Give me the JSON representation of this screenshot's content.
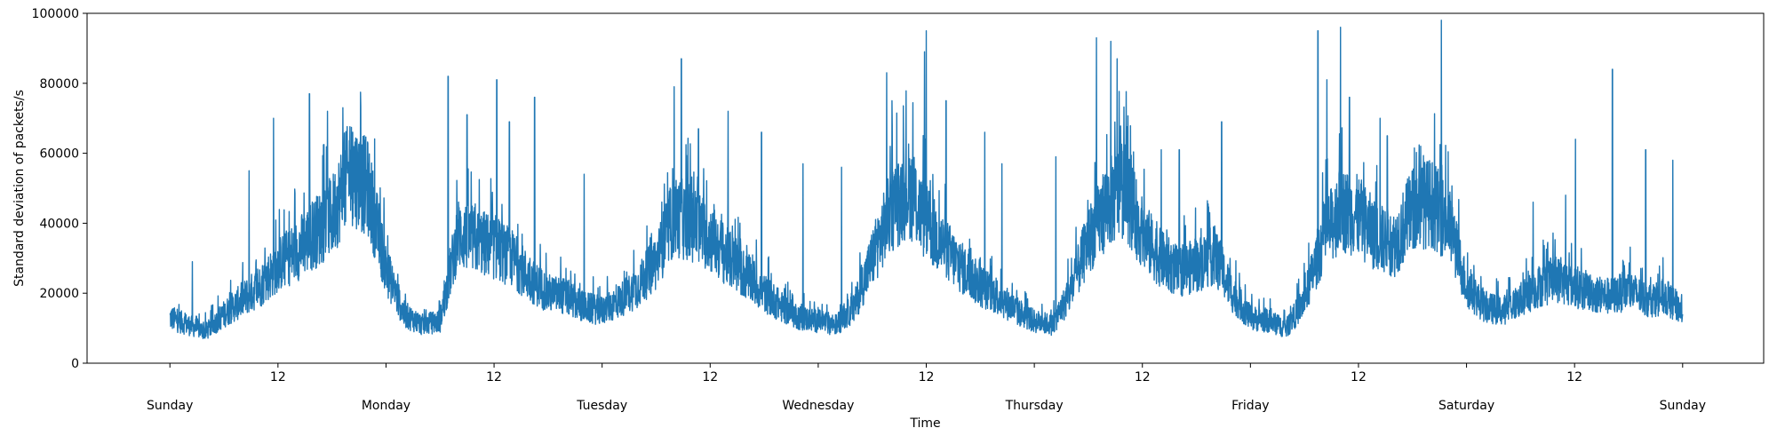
{
  "chart_data": {
    "type": "line",
    "title": "",
    "xlabel": "Time",
    "ylabel": "Standard deviation of packets/s",
    "ylim": [
      0,
      100000
    ],
    "xlim_hours": [
      -9.2,
      177
    ],
    "y_ticks": [
      0,
      20000,
      40000,
      60000,
      80000,
      100000
    ],
    "x_major_ticks": [
      {
        "hour": 0,
        "label": "Sunday"
      },
      {
        "hour": 24,
        "label": "Monday"
      },
      {
        "hour": 48,
        "label": "Tuesday"
      },
      {
        "hour": 72,
        "label": "Wednesday"
      },
      {
        "hour": 96,
        "label": "Thursday"
      },
      {
        "hour": 120,
        "label": "Friday"
      },
      {
        "hour": 144,
        "label": "Saturday"
      },
      {
        "hour": 168,
        "label": "Sunday"
      }
    ],
    "x_minor_ticks": [
      {
        "hour": 12,
        "label": "12"
      },
      {
        "hour": 36,
        "label": "12"
      },
      {
        "hour": 60,
        "label": "12"
      },
      {
        "hour": 84,
        "label": "12"
      },
      {
        "hour": 108,
        "label": "12"
      },
      {
        "hour": 132,
        "label": "12"
      },
      {
        "hour": 156,
        "label": "12"
      }
    ],
    "grid": false,
    "series": [
      {
        "color": "#1f77b4",
        "x_hours": [
          0,
          2,
          4,
          6,
          8,
          10,
          12,
          14,
          16,
          18,
          20,
          22,
          24,
          26,
          28,
          30,
          32,
          34,
          36,
          38,
          40,
          42,
          44,
          46,
          48,
          50,
          52,
          54,
          56,
          58,
          60,
          62,
          64,
          66,
          68,
          70,
          72,
          74,
          76,
          78,
          80,
          82,
          84,
          86,
          88,
          90,
          92,
          94,
          96,
          98,
          100,
          102,
          104,
          106,
          108,
          110,
          112,
          114,
          116,
          118,
          120,
          122,
          124,
          126,
          128,
          130,
          132,
          134,
          136,
          138,
          140,
          142,
          144,
          146,
          148,
          150,
          152,
          154,
          156,
          158,
          160,
          162,
          164,
          166,
          168
        ],
        "values": [
          13000,
          11000,
          9000,
          14000,
          18000,
          22000,
          28000,
          32000,
          37000,
          42000,
          55000,
          50000,
          27000,
          14000,
          11000,
          12000,
          37000,
          35000,
          33000,
          30000,
          24000,
          20000,
          19000,
          16000,
          15000,
          18000,
          22000,
          29000,
          42000,
          40000,
          36000,
          30000,
          25000,
          20000,
          16000,
          13000,
          12000,
          11000,
          16000,
          30000,
          43000,
          50000,
          40000,
          33000,
          27000,
          22000,
          19000,
          15000,
          12000,
          11000,
          20000,
          35000,
          45000,
          50000,
          37000,
          30000,
          26000,
          28000,
          31000,
          20000,
          13000,
          12000,
          10000,
          18000,
          35000,
          44000,
          42000,
          36000,
          34000,
          44000,
          46000,
          40000,
          22000,
          16000,
          15000,
          18000,
          22000,
          24000,
          22000,
          20000,
          19000,
          21000,
          18000,
          19000,
          15000
        ],
        "spikes": [
          {
            "hour": 2.5,
            "value": 29000
          },
          {
            "hour": 8.8,
            "value": 55000
          },
          {
            "hour": 11.5,
            "value": 70000
          },
          {
            "hour": 15.5,
            "value": 77000
          },
          {
            "hour": 17.5,
            "value": 72000
          },
          {
            "hour": 19.2,
            "value": 73000
          },
          {
            "hour": 20.3,
            "value": 66000
          },
          {
            "hour": 30.9,
            "value": 82000
          },
          {
            "hour": 33.0,
            "value": 71000
          },
          {
            "hour": 36.3,
            "value": 81000
          },
          {
            "hour": 37.7,
            "value": 69000
          },
          {
            "hour": 40.5,
            "value": 76000
          },
          {
            "hour": 46.0,
            "value": 54000
          },
          {
            "hour": 56.0,
            "value": 79000
          },
          {
            "hour": 56.8,
            "value": 87000
          },
          {
            "hour": 58.7,
            "value": 67000
          },
          {
            "hour": 62.0,
            "value": 72000
          },
          {
            "hour": 65.7,
            "value": 66000
          },
          {
            "hour": 70.3,
            "value": 57000
          },
          {
            "hour": 74.6,
            "value": 56000
          },
          {
            "hour": 79.6,
            "value": 83000
          },
          {
            "hour": 80.2,
            "value": 75000
          },
          {
            "hour": 83.8,
            "value": 89000
          },
          {
            "hour": 84.0,
            "value": 95000
          },
          {
            "hour": 86.2,
            "value": 75000
          },
          {
            "hour": 90.5,
            "value": 66000
          },
          {
            "hour": 92.4,
            "value": 57000
          },
          {
            "hour": 98.4,
            "value": 59000
          },
          {
            "hour": 102.9,
            "value": 93000
          },
          {
            "hour": 104.5,
            "value": 92000
          },
          {
            "hour": 105.2,
            "value": 87000
          },
          {
            "hour": 110.1,
            "value": 61000
          },
          {
            "hour": 112.1,
            "value": 61000
          },
          {
            "hour": 116.8,
            "value": 69000
          },
          {
            "hour": 127.5,
            "value": 95000
          },
          {
            "hour": 128.5,
            "value": 81000
          },
          {
            "hour": 130.0,
            "value": 96000
          },
          {
            "hour": 131.0,
            "value": 76000
          },
          {
            "hour": 134.4,
            "value": 70000
          },
          {
            "hour": 135.2,
            "value": 65000
          },
          {
            "hour": 138.9,
            "value": 62000
          },
          {
            "hour": 141.2,
            "value": 98000
          },
          {
            "hour": 151.4,
            "value": 46000
          },
          {
            "hour": 155.0,
            "value": 48000
          },
          {
            "hour": 156.1,
            "value": 64000
          },
          {
            "hour": 160.2,
            "value": 84000
          },
          {
            "hour": 163.9,
            "value": 61000
          },
          {
            "hour": 166.9,
            "value": 58000
          }
        ]
      }
    ]
  }
}
